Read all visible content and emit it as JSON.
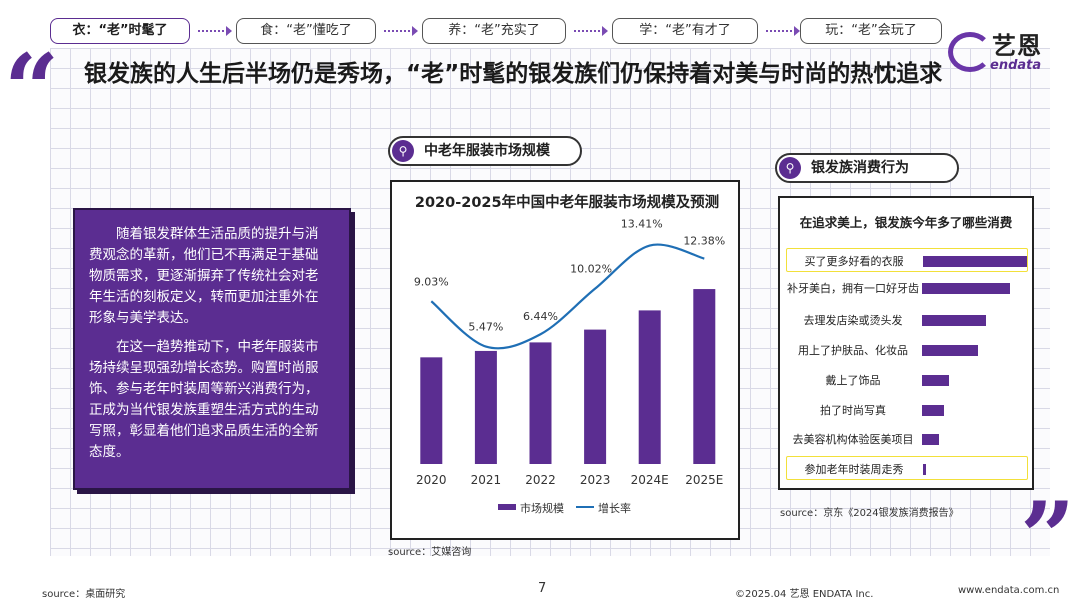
{
  "nav": {
    "items": [
      {
        "label": "衣：“老”时髦了"
      },
      {
        "label": "食：“老”懂吃了"
      },
      {
        "label": "养：“老”充实了"
      },
      {
        "label": "学：“老”有才了"
      },
      {
        "label": "玩：“老”会玩了"
      }
    ]
  },
  "logo": {
    "cn": "艺恩",
    "en": "endata"
  },
  "title": "银发族的人生后半场仍是秀场，“老”时髦的银发族们仍保持着对美与时尚的热忱追求",
  "quote_open": "“",
  "quote_close": "”",
  "panel": {
    "p1": "随着银发群体生活品质的提升与消费观念的革新，他们已不再满足于基础物质需求，更逐渐摒弃了传统社会对老年生活的刻板定义，转而更加注重外在形象与美学表达。",
    "p2": "在这一趋势推动下，中老年服装市场持续呈现强劲增长态势。购置时尚服饰、参与老年时装周等新兴消费行为，正成为当代银发族重塑生活方式的生动写照，彰显着他们追求品质生活的全新态度。"
  },
  "tag_market": "中老年服装市场规模",
  "tag_behavior": "银发族消费行为",
  "colors": {
    "accent": "#5b2d91",
    "line": "#1f6fb5",
    "highlight": "#f2e03a"
  },
  "chart_data": [
    {
      "type": "bar",
      "title": "2020-2025年中国中老年服装市场规模及预测",
      "categories": [
        "2020",
        "2021",
        "2022",
        "2023",
        "2024E",
        "2025E"
      ],
      "series": [
        {
          "name": "市场规模",
          "type": "bar",
          "values": [
            50,
            53,
            57,
            63,
            72,
            82
          ]
        },
        {
          "name": "增长率",
          "type": "line",
          "values": [
            9.03,
            5.47,
            6.44,
            10.02,
            13.41,
            12.38
          ],
          "labels": [
            "9.03%",
            "5.47%",
            "6.44%",
            "10.02%",
            "13.41%",
            "12.38%"
          ]
        }
      ],
      "legend": "bottom",
      "source": "source：艾媒咨询"
    },
    {
      "type": "bar",
      "orientation": "horizontal",
      "title": "在追求美上，银发族今年多了哪些消费",
      "categories": [
        "买了更多好看的衣服",
        "补牙美白，拥有一口好牙齿",
        "去理发店染或烫头发",
        "用上了护肤品、化妆品",
        "戴上了饰品",
        "拍了时尚写真",
        "去美容机构体验医美项目",
        "参加老年时装周走秀"
      ],
      "values": [
        100,
        85,
        62,
        54,
        26,
        21,
        16,
        3
      ],
      "highlighted": [
        0,
        7
      ],
      "source": "source：京东《2024银发族消费报告》"
    }
  ],
  "footer": {
    "source": "source：桌面研究",
    "page": "7",
    "copyright": "©2025.04  艺恩 ENDATA Inc.",
    "website": "www.endata.com.cn"
  }
}
